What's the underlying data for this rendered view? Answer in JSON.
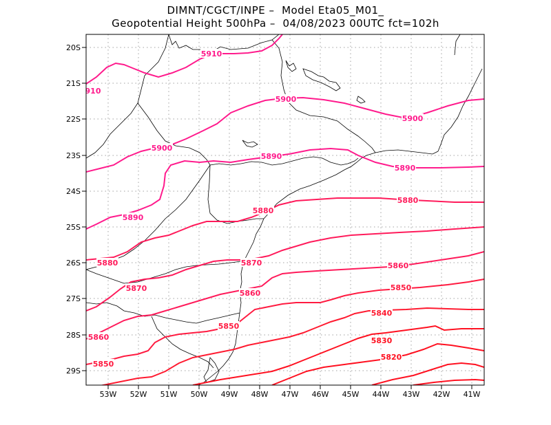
{
  "header": {
    "line1": "DIMNT/CGCT/INPE –  Model Eta05_M01_",
    "line2": "Geopotential Height 500hPa –  04/08/2023 00UTC fct=102h"
  },
  "axes": {
    "lat_labels": [
      "20S",
      "21S",
      "22S",
      "23S",
      "24S",
      "25S",
      "26S",
      "27S",
      "28S",
      "29S"
    ],
    "lon_labels": [
      "53W",
      "52W",
      "51W",
      "50W",
      "49W",
      "48W",
      "47W",
      "46W",
      "45W",
      "44W",
      "43W",
      "42W",
      "41W"
    ]
  },
  "colors": {
    "contour_high": "#ff1a8c",
    "contour_mid": "#ff1a5a",
    "contour_low": "#ff1020",
    "coast": "#000000",
    "grid": "#a0a0a0"
  },
  "contours": [
    {
      "value": "5910",
      "label": "5910"
    },
    {
      "value": "5910-edge",
      "label": "910"
    },
    {
      "value": "5900a",
      "label": "5900"
    },
    {
      "value": "5900b",
      "label": "5900"
    },
    {
      "value": "5900c",
      "label": "5900"
    },
    {
      "value": "5890a",
      "label": "5890"
    },
    {
      "value": "5890b",
      "label": "5890"
    },
    {
      "value": "5890c",
      "label": "5890"
    },
    {
      "value": "5880a",
      "label": "5880"
    },
    {
      "value": "5880b",
      "label": "5880"
    },
    {
      "value": "5880c",
      "label": "5880"
    },
    {
      "value": "5870a",
      "label": "5870"
    },
    {
      "value": "5870b",
      "label": "5870"
    },
    {
      "value": "5860a",
      "label": "5860"
    },
    {
      "value": "5860b",
      "label": "5860"
    },
    {
      "value": "5860c",
      "label": "5860"
    },
    {
      "value": "5850a",
      "label": "5850"
    },
    {
      "value": "5850b",
      "label": "5850"
    },
    {
      "value": "5850c",
      "label": "5850"
    },
    {
      "value": "5840",
      "label": "5840"
    },
    {
      "value": "5830",
      "label": "5830"
    },
    {
      "value": "5820",
      "label": "5820"
    }
  ]
}
